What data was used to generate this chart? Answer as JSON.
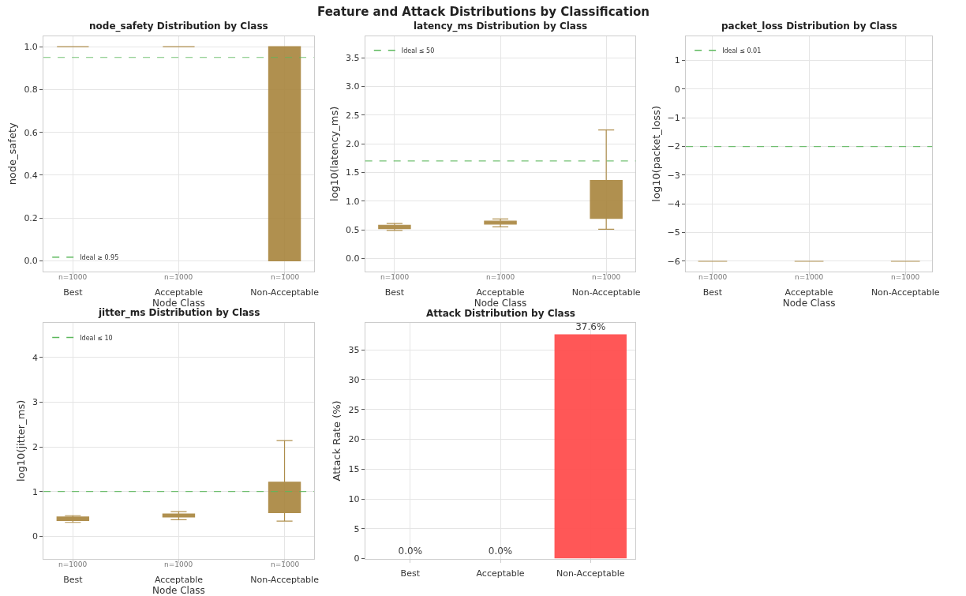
{
  "chart_data": [
    {
      "type": "box",
      "title": "node_safety Distribution by Class",
      "xlabel": "Node Class",
      "ylabel": "node_safety",
      "categories": [
        "Best",
        "Acceptable",
        "Non-Acceptable"
      ],
      "color": "#a8843c",
      "boxes": [
        {
          "low": 1,
          "q1": 1,
          "median": 1,
          "q3": 1,
          "high": 1
        },
        {
          "low": 1,
          "q1": 1,
          "median": 1,
          "q3": 1,
          "high": 1
        },
        {
          "low": 0,
          "q1": 0,
          "median": 1,
          "q3": 1,
          "high": 1
        }
      ],
      "ylim": [
        -0.05,
        1.05
      ],
      "yticks": [
        {
          "value": 0,
          "label": "0.0"
        },
        0.2,
        0.4,
        0.6,
        0.8,
        {
          "value": 1,
          "label": "1.0"
        }
      ],
      "ref_lines": [
        {
          "axis": "y",
          "value": 0.95,
          "label": "Ideal ≥ 0.95",
          "color": "#5cb85c",
          "line_style": "dashed"
        }
      ],
      "annotations": [
        "Feature and Attack Distributions by Classification",
        "n=1000",
        "n=1000",
        "n=1000"
      ],
      "grid": true,
      "legend": "bottom left"
    },
    {
      "type": "box",
      "title": "latency_ms Distribution by Class",
      "xlabel": "Node Class",
      "ylabel": "log10(latency_ms)",
      "categories": [
        "Best",
        "Acceptable",
        "Non-Acceptable"
      ],
      "color": "#a8843c",
      "boxes": [
        {
          "low": 0.49,
          "q1": 0.52,
          "median": 0.56,
          "q3": 0.58,
          "high": 0.61
        },
        {
          "low": 0.55,
          "q1": 0.6,
          "median": 0.63,
          "q3": 0.65,
          "high": 0.69
        },
        {
          "low": 0.51,
          "q1": 0.7,
          "median": 0.81,
          "q3": 1.36,
          "high": 2.24
        }
      ],
      "ylim": [
        -0.23,
        3.88
      ],
      "yticks": [
        {
          "value": 0,
          "label": "0.0"
        },
        0.5,
        {
          "value": 1,
          "label": "1.0"
        },
        1.5,
        {
          "value": 2,
          "label": "2.0"
        },
        2.5,
        {
          "value": 3,
          "label": "3.0"
        },
        3.5
      ],
      "ref_lines": [
        {
          "axis": "y",
          "value": 1.7,
          "label": "Ideal ≤ 50",
          "color": "#5cb85c",
          "line_style": "dashed"
        }
      ],
      "annotations": [
        "n=1000",
        "n=1000",
        "n=1000"
      ],
      "grid": true,
      "legend": "top left"
    },
    {
      "type": "box",
      "title": "packet_loss Distribution by Class",
      "xlabel": "Node Class",
      "ylabel": "log10(packet_loss)",
      "categories": [
        "Best",
        "Acceptable",
        "Non-Acceptable"
      ],
      "color": "#a8843c",
      "boxes": [
        {
          "low": -6,
          "q1": -6,
          "median": -6,
          "q3": -6,
          "high": -6
        },
        {
          "low": -6,
          "q1": -6,
          "median": -6,
          "q3": -6,
          "high": -6
        },
        {
          "low": -6,
          "q1": -6,
          "median": -6,
          "q3": -6,
          "high": -6
        }
      ],
      "ylim": [
        -6.36,
        1.85
      ],
      "yticks": [
        {
          "value": -6,
          "label": "−6"
        },
        {
          "value": -5,
          "label": "−5"
        },
        {
          "value": -4,
          "label": "−4"
        },
        {
          "value": -3,
          "label": "−3"
        },
        {
          "value": -2,
          "label": "−2"
        },
        {
          "value": -1,
          "label": "−1"
        },
        0,
        1
      ],
      "ref_lines": [
        {
          "axis": "y",
          "value": -2,
          "label": "Ideal ≤ 0.01",
          "color": "#5cb85c",
          "line_style": "dashed"
        }
      ],
      "annotations": [
        "n=1000",
        "n=1000",
        "n=1000"
      ],
      "grid": true,
      "legend": "top left"
    },
    {
      "type": "box",
      "title": "jitter_ms Distribution by Class",
      "xlabel": "Node Class",
      "ylabel": "log10(jitter_ms)",
      "categories": [
        "Best",
        "Acceptable",
        "Non-Acceptable"
      ],
      "color": "#a8843c",
      "boxes": [
        {
          "low": 0.31,
          "q1": 0.35,
          "median": 0.39,
          "q3": 0.43,
          "high": 0.46
        },
        {
          "low": 0.37,
          "q1": 0.43,
          "median": 0.46,
          "q3": 0.5,
          "high": 0.55
        },
        {
          "low": 0.34,
          "q1": 0.53,
          "median": 0.66,
          "q3": 1.21,
          "high": 2.14
        }
      ],
      "ylim": [
        -0.5,
        4.77
      ],
      "yticks": [
        0,
        1,
        2,
        3,
        4
      ],
      "ref_lines": [
        {
          "axis": "y",
          "value": 1,
          "label": "Ideal ≤ 10",
          "color": "#5cb85c",
          "line_style": "dashed"
        }
      ],
      "annotations": [
        "n=1000",
        "n=1000",
        "n=1000"
      ],
      "grid": true,
      "legend": "top left"
    },
    {
      "type": "bar",
      "title": "Attack Distribution by Class",
      "ylabel": "Attack Rate (%)",
      "categories": [
        "Best",
        "Acceptable",
        "Non-Acceptable"
      ],
      "color": "#ff4f4f",
      "values": [
        0,
        0,
        37.6
      ],
      "value_labels": [
        "0.0%",
        "0.0%",
        "37.6%"
      ],
      "ylim": [
        0,
        39.5
      ],
      "yticks": [
        0,
        5,
        10,
        15,
        20,
        25,
        30,
        35
      ],
      "grid": true
    }
  ]
}
